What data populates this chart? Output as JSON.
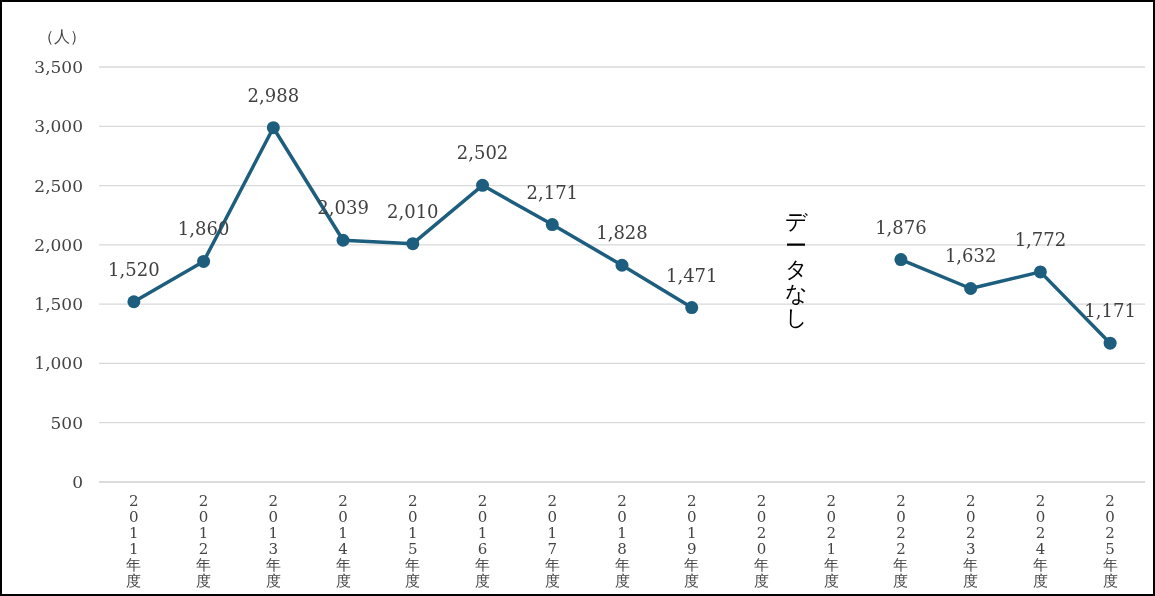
{
  "chart_data": {
    "type": "line",
    "ylabel": "（人）",
    "categories": [
      "2011年度",
      "2012年度",
      "2013年度",
      "2014年度",
      "2015年度",
      "2016年度",
      "2017年度",
      "2018年度",
      "2019年度",
      "2020年度",
      "2021年度",
      "2022年度",
      "2023年度",
      "2024年度",
      "2025年度"
    ],
    "series": [
      {
        "color": "#1d5e7e",
        "values": [
          1520,
          1860,
          2988,
          2039,
          2010,
          2502,
          2171,
          1828,
          1471,
          null,
          null,
          1876,
          1632,
          1772,
          1171
        ],
        "value_labels": [
          "1,520",
          "1,860",
          "2,988",
          "2,039",
          "2,010",
          "2,502",
          "2,171",
          "1,828",
          "1,471",
          null,
          null,
          "1,876",
          "1,632",
          "1,772",
          "1,171"
        ]
      }
    ],
    "ylim": [
      0,
      3500
    ],
    "yticks": [
      0,
      500,
      {
        "value": 1000,
        "label": "1,000"
      },
      {
        "value": 1500,
        "label": "1,500"
      },
      {
        "value": 2000,
        "label": "2,000"
      },
      {
        "value": 2500,
        "label": "2,500"
      },
      {
        "value": 3000,
        "label": "3,000"
      },
      {
        "value": 3500,
        "label": "3,500"
      }
    ],
    "grid": "y",
    "marker": "circle",
    "line_style": "solid",
    "annotations": [
      "データなし"
    ]
  }
}
